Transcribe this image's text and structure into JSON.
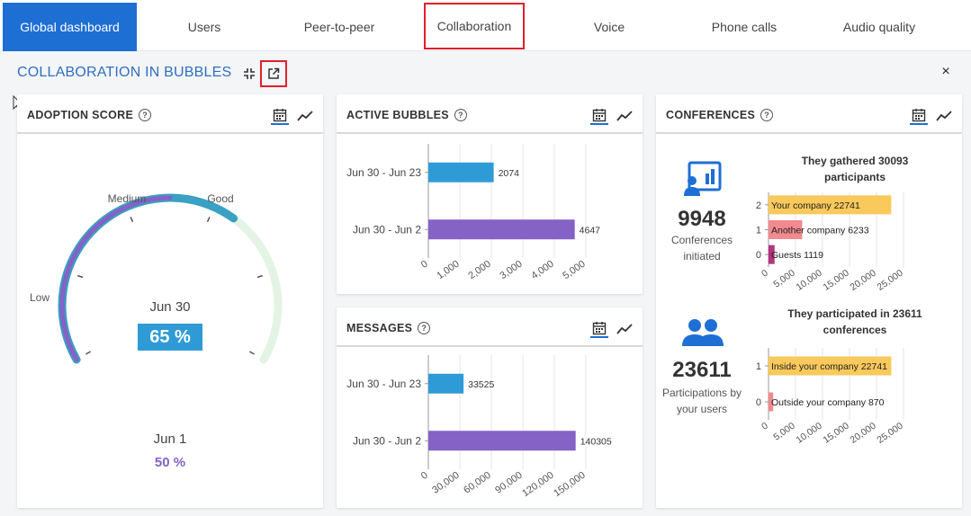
{
  "tabs": [
    {
      "label": "Global dashboard"
    },
    {
      "label": "Users"
    },
    {
      "label": "Peer-to-peer"
    },
    {
      "label": "Collaboration"
    },
    {
      "label": "Voice"
    },
    {
      "label": "Phone calls"
    },
    {
      "label": "Audio quality"
    }
  ],
  "page": {
    "title": "COLLABORATION IN BUBBLES",
    "close": "×"
  },
  "colors": {
    "accent": "#1e6fd4",
    "highlight": "#e0202a",
    "blue_bar": "#2e9bd6",
    "purple_bar": "#8462c6",
    "yellow_bar": "#f9c95c",
    "pink_bar": "#f28a8f",
    "magenta_bar": "#b2347c"
  },
  "adoption": {
    "title": "ADOPTION SCORE",
    "gauge_labels": {
      "low": "Low",
      "medium": "Medium",
      "good": "Good"
    },
    "current_date": "Jun 30",
    "current_value": "65 %",
    "current_fraction": 0.65,
    "previous_date": "Jun 1",
    "previous_value": "50 %",
    "previous_fraction": 0.5
  },
  "active_bubbles": {
    "title": "ACTIVE BUBBLES"
  },
  "messages": {
    "title": "MESSAGES"
  },
  "conferences": {
    "title": "CONFERENCES",
    "initiated_value": "9948",
    "initiated_label_1": "Conferences",
    "initiated_label_2": "initiated",
    "participations_value": "23611",
    "participations_label_1": "Participations by",
    "participations_label_2": "your users",
    "chart1_title_1": "They gathered 30093",
    "chart1_title_2": "participants",
    "chart2_title_1": "They participated in 23611",
    "chart2_title_2": "conferences"
  },
  "chart_data": [
    {
      "type": "bar",
      "orientation": "horizontal",
      "chart": "active_bubbles",
      "categories": [
        "Jun 30 - Jun 23",
        "Jun 30 - Jun 2"
      ],
      "values": [
        2074,
        4647
      ],
      "value_labels": [
        "2074",
        "4647"
      ],
      "xticks": [
        "0",
        "1,000",
        "2,000",
        "3,000",
        "4,000",
        "5,000"
      ],
      "xlim": [
        0,
        5000
      ]
    },
    {
      "type": "bar",
      "orientation": "horizontal",
      "chart": "messages",
      "categories": [
        "Jun 30 - Jun 23",
        "Jun 30 - Jun 2"
      ],
      "values": [
        33525,
        140305
      ],
      "value_labels": [
        "33525",
        "140305"
      ],
      "xticks": [
        "0",
        "30,000",
        "60,000",
        "90,000",
        "120,000",
        "150,000"
      ],
      "xlim": [
        0,
        150000
      ]
    },
    {
      "type": "bar",
      "orientation": "horizontal",
      "chart": "conferences_participants",
      "categories": [
        "2",
        "1",
        "0"
      ],
      "labels": [
        "Your company 22741",
        "Another company 6233",
        "Guests 1119"
      ],
      "values": [
        22741,
        6233,
        1119
      ],
      "xticks": [
        "0",
        "5,000",
        "10,000",
        "15,000",
        "20,000",
        "25,000"
      ],
      "xlim": [
        0,
        25000
      ]
    },
    {
      "type": "bar",
      "orientation": "horizontal",
      "chart": "conferences_participations",
      "categories": [
        "1",
        "0"
      ],
      "labels": [
        "Inside your company 22741",
        "Outside your company 870"
      ],
      "values": [
        22741,
        870
      ],
      "xticks": [
        "0",
        "5,000",
        "10,000",
        "15,000",
        "20,000",
        "25,000"
      ],
      "xlim": [
        0,
        25000
      ]
    }
  ]
}
